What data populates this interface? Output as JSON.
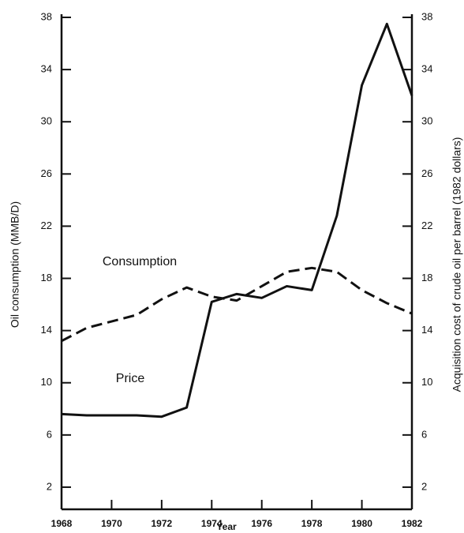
{
  "chart_data": {
    "type": "line",
    "x_label": "Year",
    "y_label": "Oil consumption (MMB/D)",
    "y2_label": "Acquisition cost of crude oil per barrel (1982 dollars)",
    "annotations": [
      "Consumption",
      "Price"
    ],
    "x": [
      1968,
      1969,
      1970,
      1971,
      1972,
      1973,
      1974,
      1975,
      1976,
      1977,
      1978,
      1979,
      1980,
      1981,
      1982
    ],
    "series": [
      {
        "name": "Consumption",
        "color": "#111111",
        "dash": true,
        "values": [
          13.2,
          14.2,
          14.7,
          15.2,
          16.4,
          17.3,
          16.6,
          16.3,
          17.4,
          18.5,
          18.8,
          18.5,
          17.1,
          16.1,
          15.3
        ]
      },
      {
        "name": "Price",
        "color": "#111111",
        "dash": false,
        "axis": "y2",
        "values": [
          7.6,
          7.5,
          7.5,
          7.5,
          7.4,
          8.1,
          16.2,
          16.8,
          16.5,
          17.4,
          17.1,
          22.8,
          32.8,
          37.5,
          32.0
        ]
      }
    ],
    "xlim": [
      1968,
      1982
    ],
    "xticks": [
      1968,
      1970,
      1972,
      1974,
      1976,
      1978,
      1980,
      1982
    ],
    "ylim": [
      0,
      38
    ],
    "yticks": [
      2,
      6,
      10,
      14,
      18,
      22,
      26,
      30,
      34,
      38
    ],
    "y2lim": [
      0,
      38
    ],
    "y2ticks": [
      2,
      6,
      10,
      14,
      18,
      22,
      26,
      30,
      34,
      38
    ]
  }
}
